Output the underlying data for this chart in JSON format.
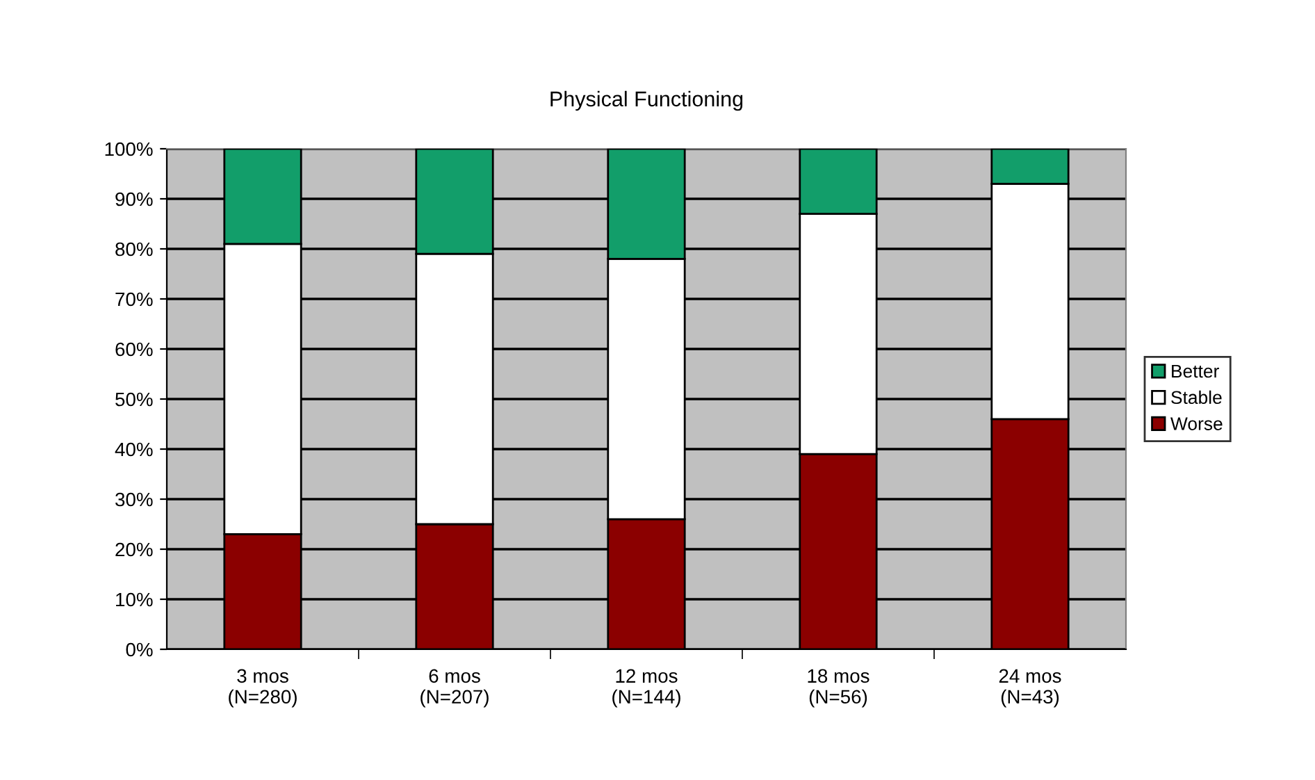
{
  "chart_data": {
    "type": "bar",
    "title": "Physical Functioning",
    "stacked": true,
    "categories": [
      "3 mos\n(N=280)",
      "6 mos\n(N=207)",
      "12 mos\n(N=144)",
      "18 mos\n(N=56)",
      "24 mos\n(N=43)"
    ],
    "series": [
      {
        "name": "Worse",
        "color": "#8b0000",
        "values": [
          23,
          25,
          26,
          39,
          46
        ]
      },
      {
        "name": "Stable",
        "color": "#ffffff",
        "values": [
          58,
          54,
          52,
          48,
          47
        ]
      },
      {
        "name": "Better",
        "color": "#129e6a",
        "values": [
          19,
          21,
          22,
          13,
          7
        ]
      }
    ],
    "ylim": [
      0,
      100
    ],
    "yticks": [
      {
        "value": 0,
        "label": "0%"
      },
      {
        "value": 10,
        "label": "10%"
      },
      {
        "value": 20,
        "label": "20%"
      },
      {
        "value": 30,
        "label": "30%"
      },
      {
        "value": 40,
        "label": "40%"
      },
      {
        "value": 50,
        "label": "50%"
      },
      {
        "value": 60,
        "label": "60%"
      },
      {
        "value": 70,
        "label": "70%"
      },
      {
        "value": 80,
        "label": "80%"
      },
      {
        "value": 90,
        "label": "90%"
      },
      {
        "value": 100,
        "label": "100%"
      }
    ],
    "grid": "y",
    "legend": "right"
  }
}
